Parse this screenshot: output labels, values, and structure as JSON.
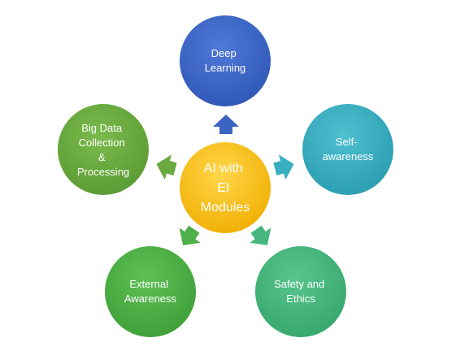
{
  "diagram": {
    "center": {
      "lines": [
        "AI with",
        "EI",
        "Modules"
      ],
      "color": "#F5B700"
    },
    "nodes": [
      {
        "key": "top",
        "lines": [
          "Deep",
          "Learning"
        ],
        "color": "#3F67C8"
      },
      {
        "key": "right",
        "lines": [
          "Self-",
          "awareness"
        ],
        "color": "#3AAFC1"
      },
      {
        "key": "bottom-right",
        "lines": [
          "Safety and",
          "Ethics"
        ],
        "color": "#47B77D"
      },
      {
        "key": "bottom-left",
        "lines": [
          "External",
          "Awareness"
        ],
        "color": "#4FAF49"
      },
      {
        "key": "left",
        "lines": [
          "Big Data",
          "Collection",
          "&",
          "Processing"
        ],
        "color": "#6BAA3F"
      }
    ]
  }
}
